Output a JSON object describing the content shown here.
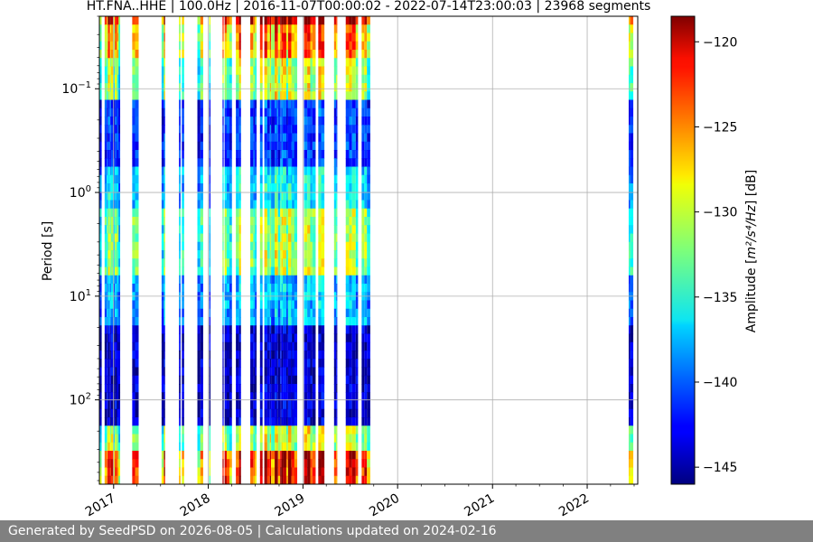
{
  "chart_data": {
    "type": "heatmap",
    "title": "HT.FNA..HHE | 100.0Hz | 2016-11-07T00:00:02 - 2022-07-14T23:00:03 | 23968 segments",
    "xlabel": "",
    "ylabel": "Period [s]",
    "x_range": [
      "2016-11-07",
      "2022-07-14"
    ],
    "y_scale": "log",
    "y_inverted": true,
    "y_range_s": [
      0.02,
      650
    ],
    "y_ticks": [
      {
        "value": 0.1,
        "base": "10",
        "exp": "−1"
      },
      {
        "value": 1,
        "base": "10",
        "exp": "0"
      },
      {
        "value": 10,
        "base": "10",
        "exp": "1"
      },
      {
        "value": 100,
        "base": "10",
        "exp": "2"
      }
    ],
    "x_ticks": [
      {
        "date": "2017-01-01",
        "label": "2017"
      },
      {
        "date": "2018-01-01",
        "label": "2018"
      },
      {
        "date": "2019-01-01",
        "label": "2019"
      },
      {
        "date": "2020-01-01",
        "label": "2020"
      },
      {
        "date": "2021-01-01",
        "label": "2021"
      },
      {
        "date": "2022-01-01",
        "label": "2022"
      }
    ],
    "grid": true,
    "colorbar": {
      "label_prefix": "Amplitude [",
      "label_math": "m²/s⁴/Hz",
      "label_suffix": "] [dB]",
      "min": -146,
      "max": -118.5,
      "ticks": [
        -120,
        -125,
        -130,
        -135,
        -140,
        -145
      ],
      "tick_labels": [
        "−120",
        "−125",
        "−130",
        "−135",
        "−140",
        "−145"
      ],
      "colormap": "jet"
    },
    "data_coverage": [
      {
        "start": "2016-11-07",
        "end": "2019-09-10",
        "note": "intermittent vertical bands"
      },
      {
        "start": "2022-06-09",
        "end": "2022-06-24",
        "note": "short segment"
      }
    ]
  },
  "footer": {
    "text": "Generated by SeedPSD on 2026-08-05 | Calculations updated on 2024-02-16"
  }
}
